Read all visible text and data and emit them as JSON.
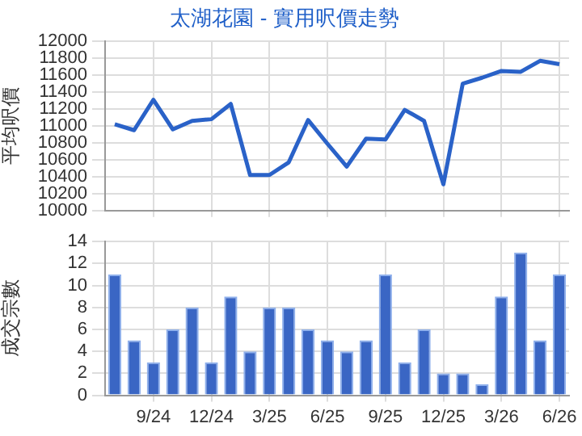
{
  "chart_data": [
    {
      "type": "line",
      "title": "太湖花園 - 實用呎價走勢",
      "ylabel": "平均呎價",
      "categories": [
        null,
        null,
        null,
        null,
        null,
        null,
        null,
        null,
        null,
        null,
        null,
        null,
        null,
        null,
        null,
        null,
        null,
        null,
        null,
        null,
        null,
        null,
        null,
        null
      ],
      "series": [
        {
          "color": "#2a62c8",
          "values": [
            11020,
            10950,
            11310,
            10960,
            11060,
            11080,
            11260,
            10420,
            10420,
            10570,
            11070,
            10790,
            10520,
            10850,
            10840,
            11190,
            11060,
            10310,
            11500,
            11570,
            11650,
            11640,
            11770,
            11730
          ]
        }
      ],
      "ylim": [
        10000,
        12000
      ],
      "yticks": [
        10000,
        10200,
        10400,
        10600,
        10800,
        11000,
        11200,
        11400,
        11600,
        11800,
        12000
      ],
      "grid": true,
      "legend": false,
      "marker": "none",
      "line_style": "solid",
      "tick_labels": "y"
    },
    {
      "type": "bar",
      "ylabel": "成交宗數",
      "categories": [
        null,
        null,
        "9/24",
        null,
        null,
        "12/24",
        null,
        null,
        "3/25",
        null,
        null,
        "6/25",
        null,
        null,
        "9/25",
        null,
        null,
        "12/25",
        null,
        null,
        "3/26",
        null,
        null,
        "6/26"
      ],
      "series": [
        {
          "color": "#3a66c4",
          "values": [
            11,
            5,
            3,
            6,
            8,
            3,
            9,
            4,
            8,
            8,
            6,
            5,
            4,
            5,
            11,
            3,
            6,
            2,
            2,
            1,
            9,
            13,
            5,
            11
          ]
        }
      ],
      "ylim": [
        0,
        14
      ],
      "yticks": [
        0,
        2,
        4,
        6,
        8,
        10,
        12,
        14
      ],
      "grid": true,
      "legend": false
    }
  ]
}
